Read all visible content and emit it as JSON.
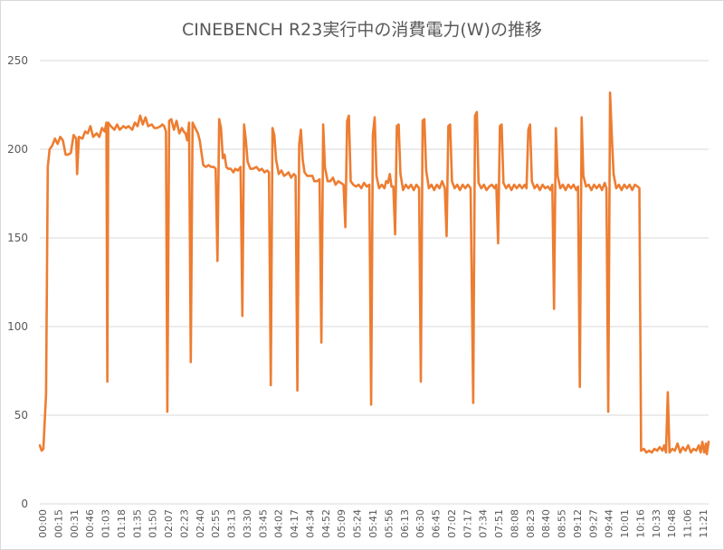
{
  "chart_data": {
    "type": "line",
    "title": "CINEBENCH R23実行中の消費電力(W)の推移",
    "xlabel": "",
    "ylabel": "",
    "ylim": [
      0,
      250
    ],
    "yticks": [
      0,
      50,
      100,
      150,
      200,
      250
    ],
    "grid": true,
    "legend": "none",
    "line_color": "#ED7D31",
    "x_tick_labels": [
      "00:00",
      "00:15",
      "00:31",
      "00:46",
      "01:03",
      "01:18",
      "01:35",
      "01:50",
      "02:07",
      "02:23",
      "02:40",
      "02:55",
      "03:13",
      "03:30",
      "03:45",
      "04:02",
      "04:17",
      "04:34",
      "04:52",
      "05:09",
      "05:24",
      "05:41",
      "05:56",
      "06:13",
      "06:30",
      "06:45",
      "07:02",
      "07:17",
      "07:34",
      "07:51",
      "08:08",
      "08:23",
      "08:40",
      "08:55",
      "09:12",
      "09:27",
      "09:44",
      "10:01",
      "10:16",
      "10:33",
      "10:48",
      "11:06",
      "11:21"
    ],
    "x_range_index": [
      0,
      42.5
    ],
    "series": [
      {
        "name": "消費電力(W)",
        "points": [
          [
            0.0,
            33
          ],
          [
            0.1,
            30
          ],
          [
            0.2,
            31
          ],
          [
            0.35,
            62
          ],
          [
            0.45,
            190
          ],
          [
            0.55,
            200
          ],
          [
            0.7,
            202
          ],
          [
            0.85,
            206
          ],
          [
            1.0,
            203
          ],
          [
            1.15,
            207
          ],
          [
            1.3,
            205
          ],
          [
            1.45,
            197
          ],
          [
            1.6,
            197
          ],
          [
            1.75,
            198
          ],
          [
            1.9,
            208
          ],
          [
            2.05,
            206
          ],
          [
            2.1,
            186
          ],
          [
            2.2,
            207
          ],
          [
            2.4,
            206
          ],
          [
            2.55,
            210
          ],
          [
            2.7,
            209
          ],
          [
            2.85,
            213
          ],
          [
            3.0,
            207
          ],
          [
            3.2,
            209
          ],
          [
            3.35,
            207
          ],
          [
            3.5,
            212
          ],
          [
            3.65,
            210
          ],
          [
            3.75,
            215
          ],
          [
            3.8,
            69
          ],
          [
            3.85,
            215
          ],
          [
            4.0,
            213
          ],
          [
            4.2,
            211
          ],
          [
            4.35,
            214
          ],
          [
            4.5,
            211
          ],
          [
            4.7,
            213
          ],
          [
            4.85,
            212
          ],
          [
            5.0,
            213
          ],
          [
            5.2,
            211
          ],
          [
            5.35,
            215
          ],
          [
            5.5,
            213
          ],
          [
            5.65,
            219
          ],
          [
            5.8,
            214
          ],
          [
            5.95,
            218
          ],
          [
            6.1,
            213
          ],
          [
            6.3,
            214
          ],
          [
            6.45,
            212
          ],
          [
            6.6,
            212
          ],
          [
            6.8,
            213
          ],
          [
            6.9,
            214
          ],
          [
            7.0,
            213
          ],
          [
            7.1,
            210
          ],
          [
            7.18,
            52
          ],
          [
            7.28,
            216
          ],
          [
            7.4,
            217
          ],
          [
            7.55,
            211
          ],
          [
            7.7,
            216
          ],
          [
            7.85,
            209
          ],
          [
            8.0,
            212
          ],
          [
            8.1,
            210
          ],
          [
            8.2,
            209
          ],
          [
            8.3,
            205
          ],
          [
            8.4,
            215
          ],
          [
            8.5,
            80
          ],
          [
            8.6,
            215
          ],
          [
            8.75,
            212
          ],
          [
            8.9,
            209
          ],
          [
            9.0,
            205
          ],
          [
            9.2,
            191
          ],
          [
            9.35,
            190
          ],
          [
            9.5,
            191
          ],
          [
            9.65,
            190
          ],
          [
            9.8,
            190
          ],
          [
            9.9,
            189
          ],
          [
            10.0,
            137
          ],
          [
            10.1,
            217
          ],
          [
            10.2,
            212
          ],
          [
            10.3,
            195
          ],
          [
            10.4,
            197
          ],
          [
            10.5,
            190
          ],
          [
            10.6,
            189
          ],
          [
            10.75,
            189
          ],
          [
            10.9,
            187
          ],
          [
            11.0,
            189
          ],
          [
            11.15,
            188
          ],
          [
            11.3,
            190
          ],
          [
            11.4,
            106
          ],
          [
            11.5,
            214
          ],
          [
            11.6,
            205
          ],
          [
            11.7,
            193
          ],
          [
            11.85,
            189
          ],
          [
            12.0,
            189
          ],
          [
            12.2,
            190
          ],
          [
            12.35,
            188
          ],
          [
            12.5,
            189
          ],
          [
            12.65,
            187
          ],
          [
            12.8,
            188
          ],
          [
            12.9,
            187
          ],
          [
            13.0,
            67
          ],
          [
            13.1,
            212
          ],
          [
            13.2,
            208
          ],
          [
            13.3,
            194
          ],
          [
            13.45,
            186
          ],
          [
            13.6,
            188
          ],
          [
            13.75,
            185
          ],
          [
            13.9,
            186
          ],
          [
            14.0,
            187
          ],
          [
            14.15,
            184
          ],
          [
            14.3,
            186
          ],
          [
            14.4,
            185
          ],
          [
            14.5,
            64
          ],
          [
            14.6,
            203
          ],
          [
            14.7,
            211
          ],
          [
            14.8,
            194
          ],
          [
            14.9,
            187
          ],
          [
            15.05,
            185
          ],
          [
            15.2,
            185
          ],
          [
            15.35,
            185
          ],
          [
            15.45,
            182
          ],
          [
            15.6,
            182
          ],
          [
            15.75,
            183
          ],
          [
            15.85,
            91
          ],
          [
            15.95,
            214
          ],
          [
            16.05,
            190
          ],
          [
            16.2,
            182
          ],
          [
            16.35,
            182
          ],
          [
            16.5,
            184
          ],
          [
            16.65,
            180
          ],
          [
            16.8,
            182
          ],
          [
            16.95,
            181
          ],
          [
            17.1,
            180
          ],
          [
            17.2,
            156
          ],
          [
            17.3,
            216
          ],
          [
            17.4,
            219
          ],
          [
            17.5,
            182
          ],
          [
            17.65,
            180
          ],
          [
            17.8,
            179
          ],
          [
            17.95,
            180
          ],
          [
            18.1,
            178
          ],
          [
            18.25,
            181
          ],
          [
            18.4,
            179
          ],
          [
            18.55,
            180
          ],
          [
            18.65,
            56
          ],
          [
            18.75,
            208
          ],
          [
            18.85,
            218
          ],
          [
            18.95,
            185
          ],
          [
            19.1,
            178
          ],
          [
            19.25,
            180
          ],
          [
            19.4,
            178
          ],
          [
            19.5,
            182
          ],
          [
            19.6,
            181
          ],
          [
            19.7,
            186
          ],
          [
            19.8,
            179
          ],
          [
            19.9,
            179
          ],
          [
            20.0,
            152
          ],
          [
            20.1,
            213
          ],
          [
            20.2,
            214
          ],
          [
            20.3,
            186
          ],
          [
            20.45,
            177
          ],
          [
            20.6,
            180
          ],
          [
            20.75,
            178
          ],
          [
            20.9,
            180
          ],
          [
            21.05,
            177
          ],
          [
            21.2,
            180
          ],
          [
            21.35,
            178
          ],
          [
            21.45,
            69
          ],
          [
            21.55,
            216
          ],
          [
            21.65,
            217
          ],
          [
            21.75,
            188
          ],
          [
            21.9,
            178
          ],
          [
            22.05,
            180
          ],
          [
            22.2,
            177
          ],
          [
            22.35,
            180
          ],
          [
            22.5,
            178
          ],
          [
            22.65,
            182
          ],
          [
            22.8,
            178
          ],
          [
            22.9,
            151
          ],
          [
            23.0,
            213
          ],
          [
            23.1,
            214
          ],
          [
            23.2,
            182
          ],
          [
            23.35,
            178
          ],
          [
            23.5,
            180
          ],
          [
            23.65,
            177
          ],
          [
            23.8,
            180
          ],
          [
            23.95,
            178
          ],
          [
            24.1,
            180
          ],
          [
            24.25,
            178
          ],
          [
            24.4,
            57
          ],
          [
            24.5,
            219
          ],
          [
            24.6,
            221
          ],
          [
            24.7,
            181
          ],
          [
            24.85,
            178
          ],
          [
            25.0,
            180
          ],
          [
            25.15,
            177
          ],
          [
            25.3,
            179
          ],
          [
            25.45,
            180
          ],
          [
            25.6,
            178
          ],
          [
            25.7,
            180
          ],
          [
            25.8,
            147
          ],
          [
            25.9,
            213
          ],
          [
            26.0,
            214
          ],
          [
            26.1,
            181
          ],
          [
            26.25,
            178
          ],
          [
            26.4,
            180
          ],
          [
            26.55,
            177
          ],
          [
            26.7,
            180
          ],
          [
            26.85,
            178
          ],
          [
            27.0,
            180
          ],
          [
            27.15,
            178
          ],
          [
            27.3,
            180
          ],
          [
            27.4,
            178
          ],
          [
            27.5,
            211
          ],
          [
            27.6,
            214
          ],
          [
            27.7,
            182
          ],
          [
            27.85,
            178
          ],
          [
            28.0,
            180
          ],
          [
            28.15,
            177
          ],
          [
            28.3,
            180
          ],
          [
            28.45,
            178
          ],
          [
            28.6,
            179
          ],
          [
            28.75,
            177
          ],
          [
            28.85,
            180
          ],
          [
            28.95,
            110
          ],
          [
            29.05,
            212
          ],
          [
            29.15,
            185
          ],
          [
            29.3,
            178
          ],
          [
            29.45,
            180
          ],
          [
            29.6,
            177
          ],
          [
            29.75,
            180
          ],
          [
            29.9,
            178
          ],
          [
            30.05,
            180
          ],
          [
            30.2,
            177
          ],
          [
            30.3,
            179
          ],
          [
            30.4,
            66
          ],
          [
            30.5,
            218
          ],
          [
            30.6,
            185
          ],
          [
            30.75,
            179
          ],
          [
            30.9,
            180
          ],
          [
            31.05,
            177
          ],
          [
            31.2,
            180
          ],
          [
            31.35,
            178
          ],
          [
            31.5,
            180
          ],
          [
            31.65,
            177
          ],
          [
            31.8,
            181
          ],
          [
            31.9,
            178
          ],
          [
            32.0,
            52
          ],
          [
            32.1,
            232
          ],
          [
            32.2,
            208
          ],
          [
            32.3,
            186
          ],
          [
            32.45,
            178
          ],
          [
            32.6,
            180
          ],
          [
            32.75,
            177
          ],
          [
            32.9,
            180
          ],
          [
            33.05,
            178
          ],
          [
            33.2,
            180
          ],
          [
            33.35,
            177
          ],
          [
            33.5,
            180
          ],
          [
            33.65,
            179
          ],
          [
            33.75,
            178
          ],
          [
            33.85,
            30
          ],
          [
            34.0,
            31
          ],
          [
            34.15,
            29
          ],
          [
            34.3,
            30
          ],
          [
            34.45,
            29
          ],
          [
            34.6,
            31
          ],
          [
            34.75,
            30
          ],
          [
            34.9,
            32
          ],
          [
            35.05,
            30
          ],
          [
            35.15,
            33
          ],
          [
            35.25,
            29
          ],
          [
            35.35,
            63
          ],
          [
            35.45,
            29
          ],
          [
            35.6,
            31
          ],
          [
            35.75,
            30
          ],
          [
            35.9,
            34
          ],
          [
            36.05,
            29
          ],
          [
            36.2,
            32
          ],
          [
            36.35,
            30
          ],
          [
            36.5,
            33
          ],
          [
            36.65,
            29
          ],
          [
            36.8,
            31
          ],
          [
            36.95,
            30
          ],
          [
            37.1,
            33
          ],
          [
            37.2,
            29
          ],
          [
            37.3,
            35
          ],
          [
            37.4,
            29
          ],
          [
            37.5,
            34
          ],
          [
            37.55,
            28
          ],
          [
            37.65,
            35
          ]
        ]
      }
    ]
  }
}
